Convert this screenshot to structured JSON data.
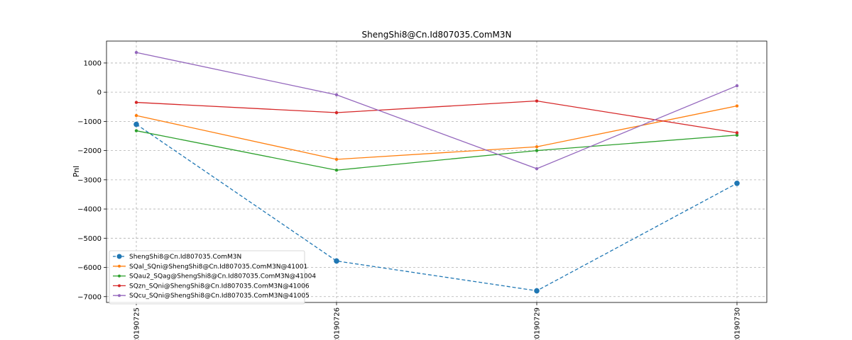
{
  "chart_data": {
    "type": "line",
    "title": "ShengShi8@Cn.Id807035.ComM3N",
    "xlabel": "",
    "ylabel": "Pnl",
    "categories": [
      "20190725",
      "20190726",
      "20190729",
      "20190730"
    ],
    "ylim": [
      -7200,
      1750
    ],
    "yticks": [
      1000,
      0,
      -1000,
      -2000,
      -3000,
      -4000,
      -5000,
      -6000,
      -7000
    ],
    "ytick_labels": [
      "1000",
      "0",
      "−1000",
      "−2000",
      "−3000",
      "−4000",
      "−5000",
      "−6000",
      "−7000"
    ],
    "grid": true,
    "legend_position": "lower-left",
    "series": [
      {
        "name": "ShengShi8@Cn.Id807035.ComM3N",
        "color": "#1f77b4",
        "linestyle": "dashed",
        "marker": "large-dot",
        "values": [
          -1100,
          -5780,
          -6800,
          -3120
        ]
      },
      {
        "name": "SQal_SQni@ShengShi8@Cn.Id807035.ComM3N@41001",
        "color": "#ff7f0e",
        "linestyle": "solid",
        "marker": "dot",
        "values": [
          -800,
          -2300,
          -1870,
          -470
        ]
      },
      {
        "name": "SQau2_SQag@ShengShi8@Cn.Id807035.ComM3N@41004",
        "color": "#2ca02c",
        "linestyle": "solid",
        "marker": "dot",
        "values": [
          -1320,
          -2670,
          -2000,
          -1470
        ]
      },
      {
        "name": "SQzn_SQni@ShengShi8@Cn.Id807035.ComM3N@41006",
        "color": "#d62728",
        "linestyle": "solid",
        "marker": "dot",
        "values": [
          -350,
          -700,
          -300,
          -1390
        ]
      },
      {
        "name": "SQcu_SQni@ShengShi8@Cn.Id807035.ComM3N@41005",
        "color": "#9467bd",
        "linestyle": "solid",
        "marker": "dot",
        "values": [
          1360,
          -90,
          -2620,
          220
        ]
      }
    ]
  }
}
